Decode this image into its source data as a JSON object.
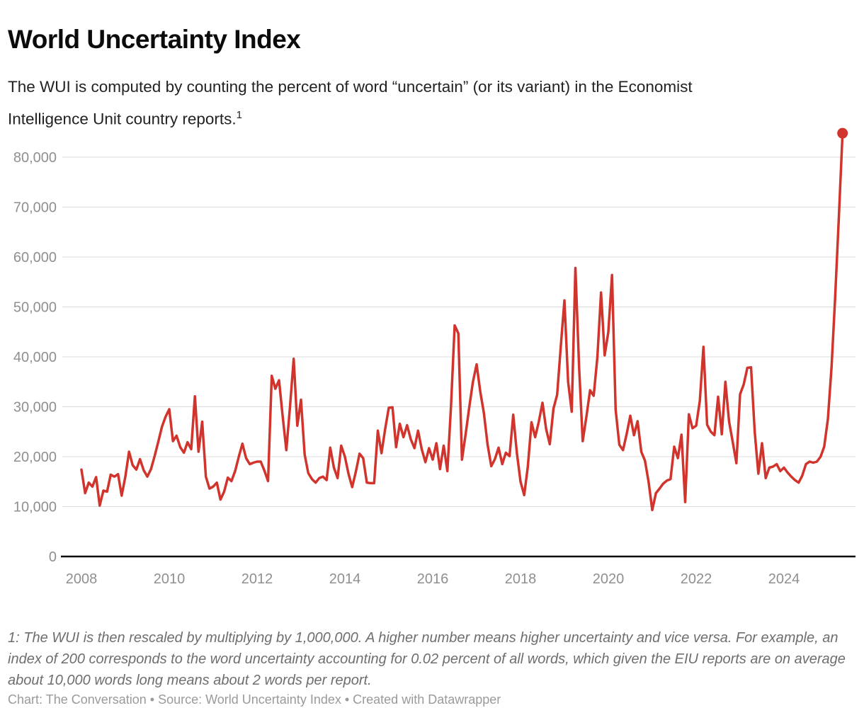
{
  "header": {
    "title": "World Uncertainty Index",
    "description": "The WUI is computed by counting the percent of word “uncertain” (or its variant) in the Economist Intelligence Unit country reports.",
    "footnote_marker": "1"
  },
  "chart_data": {
    "type": "line",
    "title": "World Uncertainty Index",
    "series_name": "World Uncertainty Index",
    "frequency": "monthly",
    "start": "2008-01",
    "end": "2025-05",
    "line_color": "#d0342c",
    "grid_color": "#dcdcdc",
    "axis_color": "#0a0a0a",
    "label_color": "#8f8f8f",
    "endpoint_dot": true,
    "legend_position": "none",
    "ylim": [
      0,
      87000
    ],
    "y_ticks": [
      {
        "v": 0,
        "label": "0"
      },
      {
        "v": 10000,
        "label": "10,000"
      },
      {
        "v": 20000,
        "label": "20,000"
      },
      {
        "v": 30000,
        "label": "30,000"
      },
      {
        "v": 40000,
        "label": "40,000"
      },
      {
        "v": 50000,
        "label": "50,000"
      },
      {
        "v": 60000,
        "label": "60,000"
      },
      {
        "v": 70000,
        "label": "70,000"
      },
      {
        "v": 80000,
        "label": "80,000"
      }
    ],
    "x_ticks": [
      {
        "v": 2008,
        "label": "2008"
      },
      {
        "v": 2010,
        "label": "2010"
      },
      {
        "v": 2012,
        "label": "2012"
      },
      {
        "v": 2014,
        "label": "2014"
      },
      {
        "v": 2016,
        "label": "2016"
      },
      {
        "v": 2018,
        "label": "2018"
      },
      {
        "v": 2020,
        "label": "2020"
      },
      {
        "v": 2022,
        "label": "2022"
      },
      {
        "v": 2024,
        "label": "2024"
      }
    ],
    "values": [
      17400,
      12700,
      14800,
      14000,
      15900,
      10200,
      13200,
      13000,
      16400,
      16000,
      16500,
      12200,
      16000,
      21000,
      18300,
      17400,
      19500,
      17300,
      16000,
      17500,
      20100,
      23000,
      26000,
      28000,
      29500,
      23100,
      24200,
      21900,
      20800,
      22900,
      21500,
      32100,
      21000,
      27000,
      16000,
      13600,
      14000,
      14800,
      11400,
      13000,
      15800,
      15100,
      17100,
      20000,
      22600,
      19700,
      18500,
      18800,
      19000,
      19000,
      17200,
      15100,
      36200,
      33600,
      35300,
      28000,
      21300,
      30000,
      39600,
      26200,
      31400,
      20400,
      16700,
      15500,
      14800,
      15700,
      16000,
      15300,
      21800,
      17800,
      15700,
      22200,
      20000,
      16500,
      13900,
      17000,
      20600,
      19700,
      14800,
      14700,
      14700,
      25200,
      20700,
      25500,
      29800,
      29900,
      21900,
      26600,
      23900,
      26300,
      23500,
      21700,
      25200,
      21500,
      18900,
      21700,
      19400,
      22700,
      17500,
      22200,
      17100,
      30000,
      46300,
      44700,
      19400,
      24500,
      30000,
      35000,
      38500,
      33000,
      28700,
      22400,
      18100,
      19500,
      21800,
      18500,
      20800,
      20100,
      28400,
      20800,
      15000,
      12300,
      18000,
      26900,
      23900,
      27000,
      30800,
      25500,
      22500,
      29600,
      32400,
      42000,
      51300,
      35000,
      29000,
      57800,
      38000,
      23100,
      28000,
      33300,
      32200,
      39900,
      52900,
      40300,
      45000,
      56400,
      29400,
      22400,
      21300,
      24500,
      28200,
      24300,
      27100,
      21000,
      19200,
      15000,
      9300,
      12700,
      13600,
      14600,
      15200,
      15500,
      22000,
      19700,
      24400,
      10900,
      28500,
      25700,
      26200,
      31200,
      42000,
      26400,
      25000,
      24300,
      32000,
      24500,
      35000,
      27000,
      22900,
      18700,
      32500,
      34500,
      37800,
      37900,
      25000,
      16600,
      22700,
      15700,
      17800,
      18000,
      18500,
      17100,
      17800,
      16800,
      16000,
      15300,
      14800,
      16200,
      18500,
      19000,
      18800,
      19000,
      20000,
      22000,
      27500,
      38000,
      52000,
      68000,
      84800
    ]
  },
  "footer": {
    "footnote": "1: The WUI is then rescaled by multiplying by 1,000,000. A higher number means higher uncertainty and vice versa. For example, an index of 200 corresponds to the word uncertainty accounting for 0.02 percent of all words, which given the EIU reports are on average about 10,000 words long means about 2 words per report.",
    "credit": "Chart: The Conversation • Source: World Uncertainty Index • Created with Datawrapper"
  }
}
